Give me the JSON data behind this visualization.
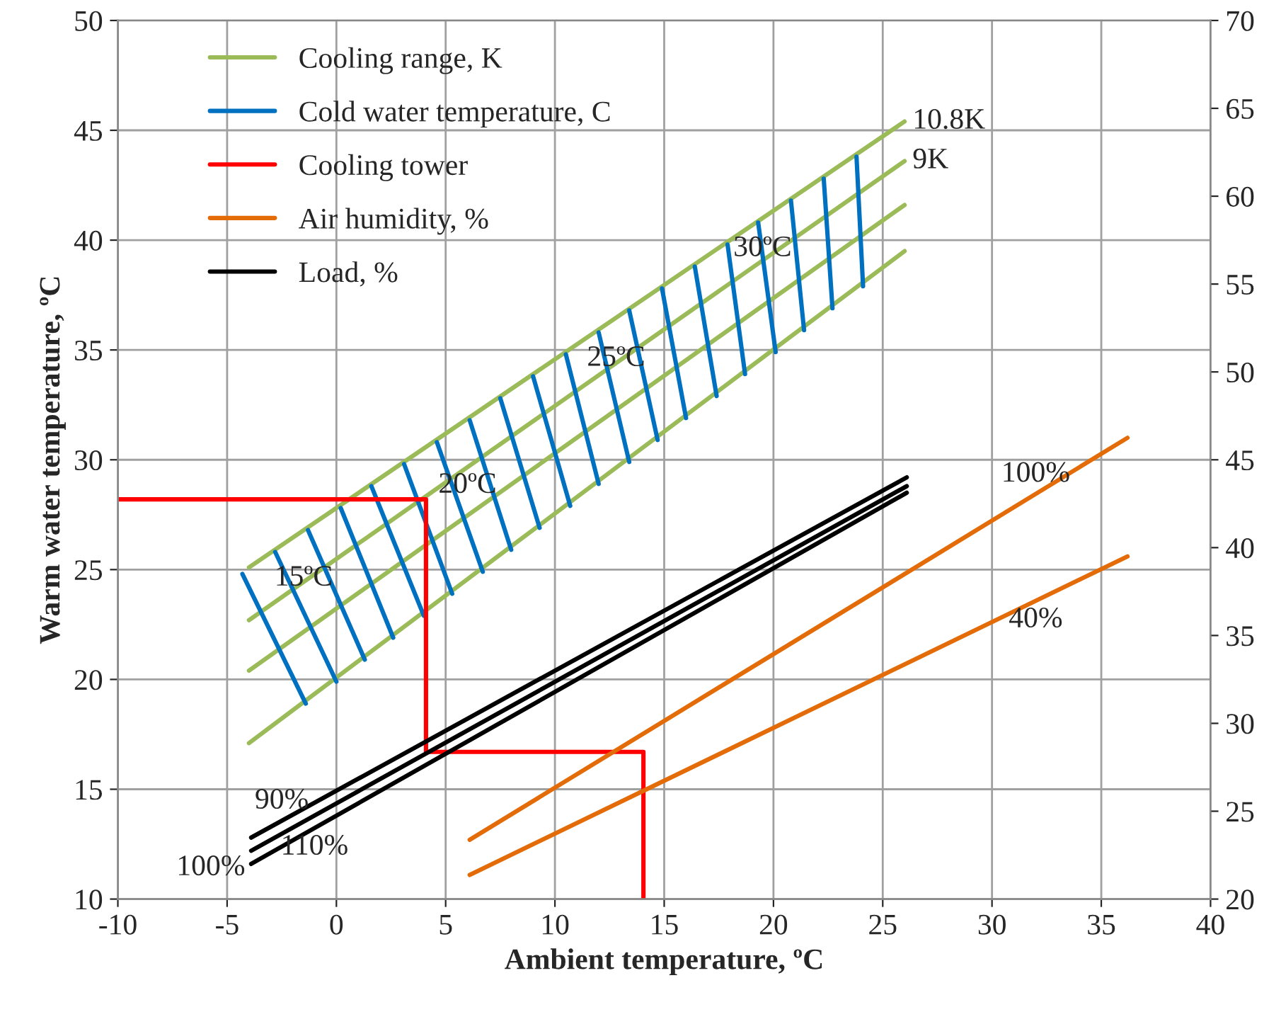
{
  "chart_data": {
    "type": "line",
    "xlabel": "Ambient temperature, ºC",
    "ylabel": "Warm water temperature, ºC",
    "xlim": [
      -10,
      40
    ],
    "xticks": [
      -10,
      -5,
      0,
      5,
      10,
      15,
      20,
      25,
      30,
      35,
      40
    ],
    "ylim": [
      10,
      50
    ],
    "yticks": [
      10,
      15,
      20,
      25,
      30,
      35,
      40,
      45,
      50
    ],
    "y2lim": [
      20,
      70
    ],
    "y2ticks": [
      20,
      25,
      30,
      35,
      40,
      45,
      50,
      55,
      60,
      65,
      70
    ],
    "grid": true,
    "legend": "top left",
    "marker": "none",
    "line_style": "solid",
    "series": [
      {
        "name": "Cooling range, K",
        "color": "#9bbb59",
        "x": [
          -4,
          26
        ],
        "values": [
          25.1,
          45.4
        ]
      },
      {
        "color": "#9bbb59",
        "x": [
          -4,
          26
        ],
        "values": [
          22.7,
          43.6
        ]
      },
      {
        "color": "#9bbb59",
        "x": [
          -4,
          26
        ],
        "values": [
          20.4,
          41.6
        ]
      },
      {
        "color": "#9bbb59",
        "x": [
          -4,
          26
        ],
        "values": [
          17.1,
          39.5
        ]
      },
      {
        "name": "Cold water temperature, C",
        "color": "#0070c0",
        "x": [
          -4.3,
          -1.4
        ],
        "values": [
          24.8,
          18.9
        ]
      },
      {
        "color": "#0070c0",
        "x": [
          -2.8,
          0.0
        ],
        "values": [
          25.8,
          19.9
        ]
      },
      {
        "color": "#0070c0",
        "x": [
          -1.3,
          1.3
        ],
        "values": [
          26.8,
          20.9
        ]
      },
      {
        "color": "#0070c0",
        "x": [
          0.2,
          2.6
        ],
        "values": [
          27.8,
          21.9
        ]
      },
      {
        "color": "#0070c0",
        "x": [
          1.6,
          4.0
        ],
        "values": [
          28.8,
          22.9
        ]
      },
      {
        "color": "#0070c0",
        "x": [
          3.1,
          5.3
        ],
        "values": [
          29.8,
          23.9
        ]
      },
      {
        "color": "#0070c0",
        "x": [
          4.6,
          6.7
        ],
        "values": [
          30.8,
          24.9
        ]
      },
      {
        "color": "#0070c0",
        "x": [
          6.1,
          8.0
        ],
        "values": [
          31.8,
          25.9
        ]
      },
      {
        "color": "#0070c0",
        "x": [
          7.5,
          9.3
        ],
        "values": [
          32.8,
          26.9
        ]
      },
      {
        "color": "#0070c0",
        "x": [
          9.0,
          10.7
        ],
        "values": [
          33.8,
          27.9
        ]
      },
      {
        "color": "#0070c0",
        "x": [
          10.5,
          12.0
        ],
        "values": [
          34.8,
          28.9
        ]
      },
      {
        "color": "#0070c0",
        "x": [
          12.0,
          13.4
        ],
        "values": [
          35.8,
          29.9
        ]
      },
      {
        "color": "#0070c0",
        "x": [
          13.4,
          14.7
        ],
        "values": [
          36.8,
          30.9
        ]
      },
      {
        "color": "#0070c0",
        "x": [
          14.9,
          16.0
        ],
        "values": [
          37.8,
          31.9
        ]
      },
      {
        "color": "#0070c0",
        "x": [
          16.4,
          17.4
        ],
        "values": [
          38.8,
          32.9
        ]
      },
      {
        "color": "#0070c0",
        "x": [
          17.9,
          18.7
        ],
        "values": [
          39.8,
          33.9
        ]
      },
      {
        "color": "#0070c0",
        "x": [
          19.3,
          20.1
        ],
        "values": [
          40.8,
          34.9
        ]
      },
      {
        "color": "#0070c0",
        "x": [
          20.8,
          21.4
        ],
        "values": [
          41.8,
          35.9
        ]
      },
      {
        "color": "#0070c0",
        "x": [
          22.3,
          22.7
        ],
        "values": [
          42.8,
          36.9
        ]
      },
      {
        "color": "#0070c0",
        "x": [
          23.8,
          24.1
        ],
        "values": [
          43.8,
          37.9
        ]
      },
      {
        "name": "Cooling tower",
        "color": "#ff0000",
        "x": [
          -10,
          4.1,
          4.1,
          14.05,
          14.05
        ],
        "values": [
          28.2,
          28.2,
          16.7,
          16.7,
          10
        ]
      },
      {
        "name": "Air humidity, %",
        "color": "#e36c09",
        "x": [
          6.1,
          36.2
        ],
        "values": [
          12.7,
          31.0
        ]
      },
      {
        "color": "#e36c09",
        "x": [
          6.1,
          36.2
        ],
        "values": [
          11.1,
          25.6
        ]
      },
      {
        "name": "Load, %",
        "color": "#000000",
        "x": [
          -3.9,
          26.1
        ],
        "values": [
          12.8,
          29.2
        ]
      },
      {
        "color": "#000000",
        "x": [
          -3.9,
          26.1
        ],
        "values": [
          12.2,
          28.8
        ]
      },
      {
        "color": "#000000",
        "x": [
          -3.9,
          26.1
        ],
        "values": [
          11.6,
          28.5
        ]
      }
    ],
    "annotations": [
      {
        "text": "10.8K",
        "x": 26,
        "y": 45.4
      },
      {
        "text": "9K",
        "x": 26,
        "y": 43.6
      },
      {
        "text": "30ºC",
        "x": 19.5,
        "y": 39.6
      },
      {
        "text": "25ºC",
        "x": 12.8,
        "y": 34.6
      },
      {
        "text": "20ºC",
        "x": 6.0,
        "y": 29.7
      },
      {
        "text": "15ºC",
        "x": -1.5,
        "y": 24.6
      },
      {
        "text": "100%",
        "x": 32,
        "y": 28.45
      },
      {
        "text": "40%",
        "x": 32,
        "y": 23.58
      },
      {
        "text": "90%",
        "x": -2.5,
        "y": 13.57
      },
      {
        "text": "100%",
        "x": -3.9,
        "y": 12.2
      },
      {
        "text": "110%",
        "x": -1,
        "y": 13.23
      }
    ]
  }
}
